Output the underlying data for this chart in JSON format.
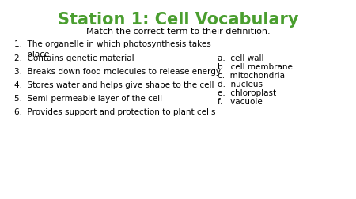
{
  "title": "Station 1: Cell Vocabulary",
  "title_color": "#4a9e2f",
  "subtitle": "Match the correct term to their definition.",
  "background_color": "#ffffff",
  "definitions": [
    "1.  The organelle in which photosynthesis takes\n     place",
    "2.  Contains genetic material",
    "3.  Breaks down food molecules to release energy",
    "4.  Stores water and helps give shape to the cell",
    "5.  Semi-permeable layer of the cell",
    "6.  Provides support and protection to plant cells"
  ],
  "terms": [
    "a.  cell wall",
    "b.  cell membrane",
    "c.  mitochondria",
    "d.  nucleus",
    "e.  chloroplast",
    "f.   vacuole"
  ],
  "text_color": "#000000",
  "title_fontsize": 15,
  "subtitle_fontsize": 8,
  "body_fontsize": 7.5
}
